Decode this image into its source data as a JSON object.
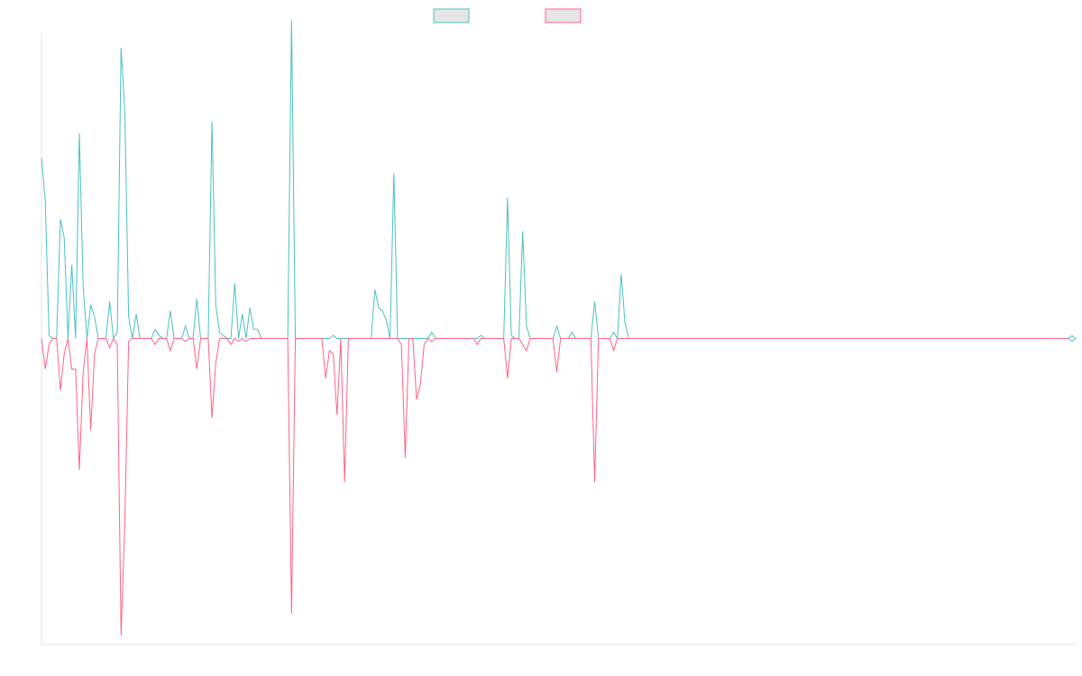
{
  "chart_data": {
    "type": "line",
    "title": "",
    "xlabel": "",
    "ylabel": "",
    "ylim": [
      -100,
      100
    ],
    "grid": false,
    "legend": "top-center",
    "series": [
      {
        "color": "#4bc0c0",
        "values": [
          59.0,
          45.0,
          1.0,
          0.0,
          0.0,
          39.0,
          33.0,
          0.0,
          24.0,
          0.0,
          67.0,
          17.0,
          0.0,
          11.0,
          7.0,
          0.0,
          0.0,
          0.0,
          12.0,
          0.0,
          2.0,
          95.0,
          74.0,
          7.0,
          0.0,
          8.0,
          0.0,
          0.0,
          0.0,
          0.0,
          3.0,
          1.0,
          0.0,
          0.0,
          9.0,
          0.0,
          0.0,
          0.0,
          4.0,
          0.0,
          0.0,
          13.0,
          0.0,
          0.0,
          0.0,
          71.0,
          11.0,
          2.0,
          1.0,
          0.0,
          0.0,
          18.0,
          0.0,
          8.0,
          0.0,
          10.0,
          3.0,
          3.0,
          0.0,
          0.0,
          0.0,
          0.0,
          0.0,
          0.0,
          0.0,
          0.0,
          104.0,
          0.0,
          0.0,
          0.0,
          0.0,
          0.0,
          0.0,
          0.0,
          0.0,
          0.0,
          0.0,
          1.0,
          0.0,
          0.0,
          0.0,
          0.0,
          0.0,
          0.0,
          0.0,
          0.0,
          0.0,
          0.0,
          16.0,
          10.0,
          9.0,
          6.0,
          0.0,
          54.0,
          0.0,
          0.0,
          0.0,
          0.0,
          0.0,
          0.0,
          0.0,
          0.0,
          0.0,
          2.0,
          0.0,
          0.0,
          0.0,
          0.0,
          0.0,
          0.0,
          0.0,
          0.0,
          0.0,
          0.0,
          0.0,
          0.0,
          1.0,
          0.0,
          0.0,
          0.0,
          0.0,
          0.0,
          0.0,
          46.0,
          1.0,
          0.0,
          0.0,
          35.0,
          4.0,
          0.0,
          0.0,
          0.0,
          0.0,
          0.0,
          0.0,
          0.0,
          4.0,
          0.0,
          0.0,
          0.0,
          2.0,
          0.0,
          0.0,
          0.0,
          0.0,
          0.0,
          12.0,
          0.0,
          0.0,
          0.0,
          0.0,
          2.0,
          0.0,
          21.0,
          5.0,
          0.0,
          0.0,
          0.0,
          0.0,
          0.0,
          0.0,
          0.0,
          0.0,
          0.0,
          0.0,
          0.0,
          0.0,
          0.0,
          0.0,
          0.0,
          0.0,
          0.0,
          0.0,
          0.0,
          0.0,
          0.0,
          0.0,
          0.0,
          0.0,
          0.0,
          0.0,
          0.0,
          0.0,
          0.0,
          0.0,
          0.0,
          0.0,
          0.0,
          0.0,
          0.0,
          0.0,
          0.0,
          0.0,
          0.0,
          0.0,
          0.0,
          0.0,
          0.0,
          0.0,
          0.0,
          0.0,
          0.0,
          0.0,
          0.0,
          0.0,
          0.0,
          0.0,
          0.0,
          0.0,
          0.0,
          0.0,
          0.0,
          0.0,
          0.0,
          0.0,
          0.0,
          0.0,
          0.0,
          0.0,
          0.0,
          0.0,
          0.0,
          0.0,
          0.0,
          0.0,
          0.0,
          0.0,
          0.0,
          0.0,
          0.0,
          0.0,
          0.0,
          0.0,
          0.0,
          0.0,
          0.0,
          0.0,
          0.0,
          0.0,
          0.0,
          0.0,
          0.0,
          0.0,
          0.0,
          0.0,
          0.0,
          0.0,
          0.0,
          0.0,
          0.0,
          0.0,
          0.0,
          0.0,
          0.0,
          0.0,
          0.0,
          0.0,
          0.0,
          0.0,
          0.0,
          0.0,
          0.0,
          0.0,
          0.0,
          0.0,
          0.0,
          0.0,
          0.0,
          0.0,
          0.0,
          0.0,
          0.0,
          0.0
        ]
      },
      {
        "color": "#ff6384",
        "values": [
          0.0,
          -10.0,
          -2.0,
          0.0,
          0.0,
          -17.0,
          -5.0,
          0.0,
          -10.0,
          -10.0,
          -43.0,
          -11.0,
          0.0,
          -30.0,
          -5.0,
          0.0,
          0.0,
          0.0,
          -3.0,
          0.0,
          -2.0,
          -97.0,
          -60.0,
          -1.0,
          0.0,
          0.0,
          0.0,
          0.0,
          0.0,
          0.0,
          -2.0,
          0.0,
          0.0,
          0.0,
          -4.0,
          0.0,
          0.0,
          0.0,
          -1.0,
          0.0,
          0.0,
          -10.0,
          0.0,
          0.0,
          0.0,
          -26.0,
          -8.0,
          0.0,
          0.0,
          0.0,
          -2.0,
          0.0,
          -1.0,
          0.0,
          -1.0,
          0.0,
          0.0,
          0.0,
          0.0,
          0.0,
          0.0,
          0.0,
          0.0,
          0.0,
          0.0,
          0.0,
          -90.0,
          0.0,
          0.0,
          0.0,
          0.0,
          0.0,
          0.0,
          0.0,
          0.0,
          -13.0,
          -4.0,
          -5.0,
          -25.0,
          0.0,
          -47.0,
          0.0,
          0.0,
          0.0,
          0.0,
          0.0,
          0.0,
          0.0,
          0.0,
          0.0,
          0.0,
          0.0,
          0.0,
          0.0,
          0.0,
          -2.0,
          -39.0,
          0.0,
          0.0,
          -20.0,
          -15.0,
          -2.0,
          0.0,
          -1.0,
          0.0,
          0.0,
          0.0,
          0.0,
          0.0,
          0.0,
          0.0,
          0.0,
          0.0,
          0.0,
          0.0,
          -2.0,
          0.0,
          0.0,
          0.0,
          0.0,
          0.0,
          0.0,
          0.0,
          -13.0,
          0.0,
          0.0,
          0.0,
          -2.0,
          -4.0,
          0.0,
          0.0,
          0.0,
          0.0,
          0.0,
          0.0,
          0.0,
          -11.0,
          0.0,
          0.0,
          0.0,
          0.0,
          0.0,
          0.0,
          0.0,
          0.0,
          0.0,
          -47.0,
          0.0,
          0.0,
          0.0,
          0.0,
          -4.0,
          0.0,
          0.0,
          0.0,
          0.0,
          0.0,
          0.0,
          0.0,
          0.0,
          0.0,
          0.0,
          0.0,
          0.0,
          0.0,
          0.0,
          0.0,
          0.0,
          0.0,
          0.0,
          0.0,
          0.0,
          0.0,
          0.0,
          0.0,
          0.0,
          0.0,
          0.0,
          0.0,
          0.0,
          0.0,
          0.0,
          0.0,
          0.0,
          0.0,
          0.0,
          0.0,
          0.0,
          0.0,
          0.0,
          0.0,
          0.0,
          0.0,
          0.0,
          0.0,
          0.0,
          0.0,
          0.0,
          0.0,
          0.0,
          0.0,
          0.0,
          0.0,
          0.0,
          0.0,
          0.0,
          0.0,
          0.0,
          0.0,
          0.0,
          0.0,
          0.0,
          0.0,
          0.0,
          0.0,
          0.0,
          0.0,
          0.0,
          0.0,
          0.0,
          0.0,
          0.0,
          0.0,
          0.0,
          0.0,
          0.0,
          0.0,
          0.0,
          0.0,
          0.0,
          0.0,
          0.0,
          0.0,
          0.0,
          0.0,
          0.0,
          0.0,
          0.0,
          0.0,
          0.0,
          0.0,
          0.0,
          0.0,
          0.0,
          0.0,
          0.0,
          0.0,
          0.0,
          0.0,
          0.0,
          0.0,
          0.0,
          0.0,
          0.0,
          0.0,
          0.0,
          0.0,
          0.0,
          0.0,
          0.0,
          0.0,
          0.0,
          0.0,
          0.0,
          0.0,
          0.0,
          0.0,
          0.0,
          0.0,
          0.0,
          0.0,
          0.0,
          0.0
        ]
      }
    ]
  }
}
